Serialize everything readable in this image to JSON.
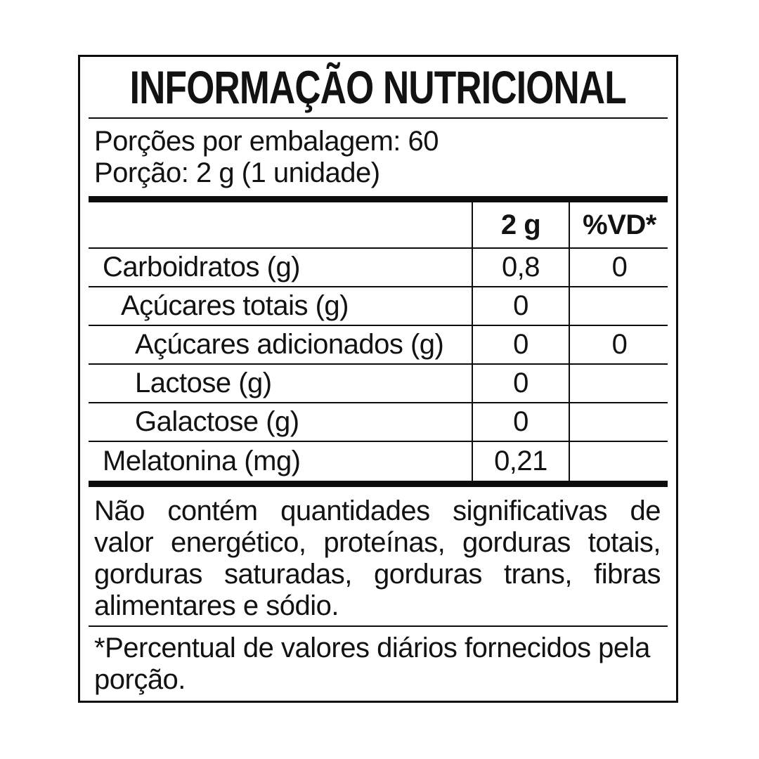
{
  "label": {
    "title": "INFORMAÇÃO NUTRICIONAL",
    "serving": {
      "servings_per_package": "Porções por embalagem: 60",
      "serving_size": "Porção: 2 g (1 unidade)"
    },
    "table": {
      "columns": {
        "amount": "2 g",
        "daily_value": "%VD*"
      },
      "rows": [
        {
          "label": "Carboidratos (g)",
          "amount": "0,8",
          "daily_value": "0"
        },
        {
          "label": "Açúcares totais (g)",
          "amount": "0",
          "daily_value": ""
        },
        {
          "label": "Açúcares adicionados (g)",
          "amount": "0",
          "daily_value": "0"
        },
        {
          "label": "Lactose (g)",
          "amount": "0",
          "daily_value": ""
        },
        {
          "label": "Galactose (g)",
          "amount": "0",
          "daily_value": ""
        },
        {
          "label": "Melatonina (mg)",
          "amount": "0,21",
          "daily_value": ""
        }
      ]
    },
    "note": {
      "lines": [
        "Não contém quantidades significativas de",
        "valor energético, proteínas, gorduras totais,",
        "gorduras saturadas, gorduras trans, fibras",
        "alimentares e sódio."
      ]
    },
    "footnote": {
      "lines": [
        "*Percentual de valores diários fornecidos pela",
        "porção."
      ]
    },
    "colors": {
      "ink": "#0d0d0d",
      "background": "#ffffff"
    }
  }
}
